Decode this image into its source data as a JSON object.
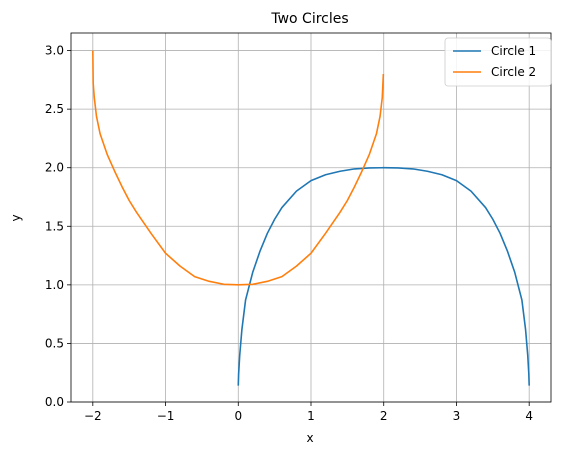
{
  "chart_data": {
    "type": "line",
    "title": "Two Circles",
    "xlabel": "x",
    "ylabel": "y",
    "xlim": [
      -2.3,
      4.3
    ],
    "ylim": [
      0.0,
      3.15
    ],
    "xticks": [
      -2,
      -1,
      0,
      1,
      2,
      3,
      4
    ],
    "xtick_labels": [
      "−2",
      "−1",
      "0",
      "1",
      "2",
      "3",
      "4"
    ],
    "yticks": [
      0.0,
      0.5,
      1.0,
      1.5,
      2.0,
      2.5,
      3.0
    ],
    "ytick_labels": [
      "0.0",
      "0.5",
      "1.0",
      "1.5",
      "2.0",
      "2.5",
      "3.0"
    ],
    "grid": true,
    "legend_position": "top-right",
    "series": [
      {
        "name": "Circle 1",
        "color": "#1f77b4",
        "x": [
          0.0,
          0.005,
          0.02,
          0.05,
          0.1,
          0.2,
          0.3,
          0.4,
          0.5,
          0.6,
          0.8,
          1.0,
          1.2,
          1.4,
          1.6,
          1.8,
          2.0,
          2.2,
          2.4,
          2.6,
          2.8,
          3.0,
          3.2,
          3.4,
          3.5,
          3.6,
          3.7,
          3.8,
          3.9,
          3.95,
          3.98,
          3.995,
          4.0
        ],
        "y": [
          0.14,
          0.24,
          0.4,
          0.62,
          0.87,
          1.11,
          1.29,
          1.44,
          1.56,
          1.66,
          1.8,
          1.89,
          1.94,
          1.97,
          1.99,
          1.998,
          2.0,
          1.998,
          1.99,
          1.97,
          1.94,
          1.89,
          1.8,
          1.66,
          1.56,
          1.44,
          1.29,
          1.11,
          0.87,
          0.62,
          0.4,
          0.24,
          0.14
        ]
      },
      {
        "name": "Circle 2",
        "color": "#ff7f0e",
        "x": [
          -2.0,
          -1.995,
          -1.98,
          -1.95,
          -1.9,
          -1.8,
          -1.7,
          -1.6,
          -1.5,
          -1.4,
          -1.2,
          -1.0,
          -0.8,
          -0.6,
          -0.4,
          -0.2,
          0.0,
          0.2,
          0.4,
          0.6,
          0.8,
          1.0,
          1.2,
          1.4,
          1.5,
          1.6,
          1.7,
          1.8,
          1.9,
          1.95,
          1.98,
          1.995
        ],
        "y": [
          3.0,
          2.72,
          2.6,
          2.44,
          2.29,
          2.11,
          1.97,
          1.84,
          1.72,
          1.62,
          1.44,
          1.27,
          1.16,
          1.07,
          1.03,
          1.005,
          1.0,
          1.005,
          1.03,
          1.07,
          1.16,
          1.27,
          1.44,
          1.62,
          1.72,
          1.84,
          1.97,
          2.11,
          2.29,
          2.44,
          2.6,
          2.8
        ]
      }
    ]
  }
}
